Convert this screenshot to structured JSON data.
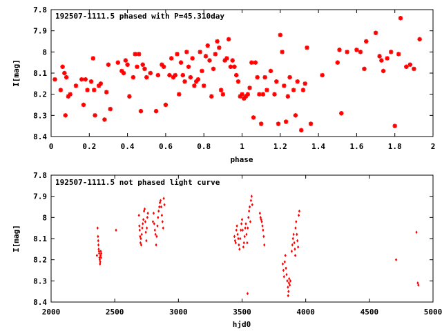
{
  "chart_data": [
    {
      "type": "scatter",
      "title": "192507-1111.5 phased with P=45.310day",
      "xlabel": "phase",
      "ylabel": "I[mag]",
      "xlim": [
        0,
        2
      ],
      "ylim": [
        8.4,
        7.8
      ],
      "y_inverted": true,
      "grid": false,
      "marker_color": "#ff0000",
      "marker": "star",
      "x_ticks": [
        "0",
        "0.2",
        "0.4",
        "0.6",
        "0.8",
        "1",
        "1.2",
        "1.4",
        "1.6",
        "1.8",
        "2"
      ],
      "y_ticks": [
        "7.8",
        "7.9",
        "8",
        "8.1",
        "8.2",
        "8.3",
        "8.4"
      ],
      "series": [
        {
          "points": [
            [
              0.02,
              8.13
            ],
            [
              0.05,
              8.18
            ],
            [
              0.06,
              8.07
            ],
            [
              0.07,
              8.1
            ],
            [
              0.075,
              8.3
            ],
            [
              0.08,
              8.12
            ],
            [
              0.09,
              8.21
            ],
            [
              0.1,
              8.2
            ],
            [
              0.13,
              8.16
            ],
            [
              0.16,
              8.13
            ],
            [
              0.17,
              8.25
            ],
            [
              0.18,
              8.13
            ],
            [
              0.19,
              8.18
            ],
            [
              0.21,
              8.14
            ],
            [
              0.22,
              8.03
            ],
            [
              0.225,
              8.18
            ],
            [
              0.23,
              8.3
            ],
            [
              0.25,
              8.16
            ],
            [
              0.26,
              8.15
            ],
            [
              0.28,
              8.32
            ],
            [
              0.29,
              8.19
            ],
            [
              0.3,
              8.06
            ],
            [
              0.31,
              8.27
            ],
            [
              0.35,
              8.05
            ],
            [
              0.37,
              8.09
            ],
            [
              0.38,
              8.1
            ],
            [
              0.39,
              8.04
            ],
            [
              0.4,
              8.06
            ],
            [
              0.41,
              8.21
            ],
            [
              0.43,
              8.12
            ],
            [
              0.44,
              8.01
            ],
            [
              0.45,
              8.07
            ],
            [
              0.46,
              8.01
            ],
            [
              0.47,
              8.28
            ],
            [
              0.48,
              8.06
            ],
            [
              0.49,
              8.08
            ],
            [
              0.5,
              8.12
            ],
            [
              0.52,
              8.1
            ],
            [
              0.55,
              8.28
            ],
            [
              0.56,
              8.11
            ],
            [
              0.58,
              8.06
            ],
            [
              0.59,
              8.07
            ],
            [
              0.6,
              8.25
            ],
            [
              0.62,
              8.11
            ],
            [
              0.63,
              8.03
            ],
            [
              0.64,
              8.12
            ],
            [
              0.65,
              8.11
            ],
            [
              0.66,
              8.01
            ],
            [
              0.67,
              8.2
            ],
            [
              0.68,
              8.05
            ],
            [
              0.69,
              8.11
            ],
            [
              0.7,
              8.14
            ],
            [
              0.71,
              8.0
            ],
            [
              0.72,
              8.07
            ],
            [
              0.73,
              8.12
            ],
            [
              0.74,
              8.03
            ],
            [
              0.75,
              8.16
            ],
            [
              0.76,
              8.14
            ],
            [
              0.77,
              8.13
            ],
            [
              0.78,
              8.0
            ],
            [
              0.79,
              8.09
            ],
            [
              0.8,
              8.16
            ],
            [
              0.81,
              8.02
            ],
            [
              0.82,
              7.97
            ],
            [
              0.83,
              8.04
            ],
            [
              0.84,
              8.21
            ],
            [
              0.85,
              8.08
            ],
            [
              0.86,
              8.01
            ],
            [
              0.87,
              7.95
            ],
            [
              0.88,
              7.98
            ],
            [
              0.89,
              8.18
            ],
            [
              0.9,
              8.2
            ],
            [
              0.91,
              8.04
            ],
            [
              0.92,
              8.03
            ],
            [
              0.93,
              7.94
            ],
            [
              0.94,
              8.07
            ],
            [
              0.95,
              8.04
            ],
            [
              0.96,
              8.07
            ],
            [
              0.97,
              8.11
            ],
            [
              0.98,
              8.14
            ],
            [
              0.99,
              8.21
            ],
            [
              1.0,
              8.2
            ],
            [
              1.01,
              8.22
            ],
            [
              1.02,
              8.21
            ],
            [
              1.03,
              8.2
            ],
            [
              1.04,
              8.17
            ],
            [
              1.05,
              8.05
            ],
            [
              1.06,
              8.31
            ],
            [
              1.07,
              8.05
            ],
            [
              1.08,
              8.12
            ],
            [
              1.09,
              8.2
            ],
            [
              1.1,
              8.34
            ],
            [
              1.11,
              8.2
            ],
            [
              1.12,
              8.12
            ],
            [
              1.13,
              8.18
            ],
            [
              1.15,
              8.09
            ],
            [
              1.17,
              8.2
            ],
            [
              1.18,
              8.14
            ],
            [
              1.19,
              8.34
            ],
            [
              1.2,
              7.92
            ],
            [
              1.21,
              8.0
            ],
            [
              1.22,
              8.16
            ],
            [
              1.23,
              8.33
            ],
            [
              1.24,
              8.21
            ],
            [
              1.25,
              8.12
            ],
            [
              1.27,
              8.18
            ],
            [
              1.28,
              8.3
            ],
            [
              1.29,
              8.14
            ],
            [
              1.31,
              8.37
            ],
            [
              1.32,
              8.18
            ],
            [
              1.33,
              8.15
            ],
            [
              1.34,
              7.98
            ],
            [
              1.36,
              8.34
            ],
            [
              1.42,
              8.11
            ],
            [
              1.5,
              8.05
            ],
            [
              1.51,
              7.99
            ],
            [
              1.52,
              8.29
            ],
            [
              1.55,
              8.0
            ],
            [
              1.6,
              7.99
            ],
            [
              1.62,
              8.0
            ],
            [
              1.64,
              8.08
            ],
            [
              1.65,
              7.95
            ],
            [
              1.7,
              7.91
            ],
            [
              1.72,
              8.02
            ],
            [
              1.73,
              8.04
            ],
            [
              1.74,
              8.09
            ],
            [
              1.76,
              8.03
            ],
            [
              1.78,
              8.0
            ],
            [
              1.8,
              8.35
            ],
            [
              1.82,
              8.01
            ],
            [
              1.83,
              7.84
            ],
            [
              1.86,
              8.07
            ],
            [
              1.88,
              8.06
            ],
            [
              1.9,
              8.08
            ],
            [
              1.93,
              7.94
            ]
          ]
        }
      ]
    },
    {
      "type": "scatter",
      "title": "192507-1111.5 not phased light curve",
      "xlabel": "hjd0",
      "ylabel": "I[mag]",
      "xlim": [
        2000,
        5000
      ],
      "ylim": [
        8.4,
        7.8
      ],
      "y_inverted": true,
      "grid": false,
      "marker_color": "#ff0000",
      "marker": "diamond",
      "x_ticks": [
        "2000",
        "2500",
        "3000",
        "3500",
        "4000",
        "4500",
        "5000"
      ],
      "y_ticks": [
        "7.8",
        "7.9",
        "8",
        "8.1",
        "8.2",
        "8.3",
        "8.4"
      ],
      "series": [
        {
          "points": [
            [
              2360,
              8.18
            ],
            [
              2365,
              8.05
            ],
            [
              2368,
              8.09
            ],
            [
              2370,
              8.11
            ],
            [
              2372,
              8.13
            ],
            [
              2374,
              8.15
            ],
            [
              2376,
              8.16
            ],
            [
              2378,
              8.17
            ],
            [
              2380,
              8.19
            ],
            [
              2382,
              8.2
            ],
            [
              2384,
              8.22
            ],
            [
              2386,
              8.21
            ],
            [
              2388,
              8.18
            ],
            [
              2390,
              8.16
            ],
            [
              2392,
              8.19
            ],
            [
              2394,
              8.17
            ],
            [
              2510,
              8.06
            ],
            [
              2690,
              7.99
            ],
            [
              2693,
              8.04
            ],
            [
              2696,
              8.06
            ],
            [
              2699,
              8.09
            ],
            [
              2702,
              8.12
            ],
            [
              2705,
              8.1
            ],
            [
              2708,
              8.13
            ],
            [
              2712,
              8.08
            ],
            [
              2716,
              8.05
            ],
            [
              2720,
              8.03
            ],
            [
              2725,
              8.01
            ],
            [
              2730,
              7.97
            ],
            [
              2735,
              7.96
            ],
            [
              2740,
              8.02
            ],
            [
              2744,
              8.07
            ],
            [
              2748,
              8.11
            ],
            [
              2752,
              8.05
            ],
            [
              2756,
              8.0
            ],
            [
              2760,
              7.98
            ],
            [
              2800,
              8.02
            ],
            [
              2805,
              7.98
            ],
            [
              2810,
              8.03
            ],
            [
              2815,
              8.06
            ],
            [
              2820,
              8.08
            ],
            [
              2825,
              8.13
            ],
            [
              2830,
              8.09
            ],
            [
              2835,
              8.04
            ],
            [
              2840,
              8.0
            ],
            [
              2845,
              7.97
            ],
            [
              2850,
              7.95
            ],
            [
              2855,
              7.93
            ],
            [
              2860,
              7.92
            ],
            [
              2865,
              7.95
            ],
            [
              2870,
              7.99
            ],
            [
              2875,
              8.02
            ],
            [
              2880,
              8.05
            ],
            [
              2885,
              7.91
            ],
            [
              2890,
              7.94
            ],
            [
              3440,
              8.09
            ],
            [
              3445,
              8.11
            ],
            [
              3450,
              8.12
            ],
            [
              3455,
              8.06
            ],
            [
              3460,
              8.04
            ],
            [
              3465,
              8.08
            ],
            [
              3470,
              8.1
            ],
            [
              3475,
              8.13
            ],
            [
              3480,
              8.15
            ],
            [
              3485,
              8.1
            ],
            [
              3490,
              8.06
            ],
            [
              3495,
              8.03
            ],
            [
              3500,
              8.01
            ],
            [
              3505,
              8.06
            ],
            [
              3510,
              8.14
            ],
            [
              3515,
              8.12
            ],
            [
              3520,
              8.09
            ],
            [
              3525,
              8.05
            ],
            [
              3530,
              8.03
            ],
            [
              3535,
              8.08
            ],
            [
              3540,
              8.12
            ],
            [
              3543,
              8.36
            ],
            [
              3545,
              8.05
            ],
            [
              3550,
              8.0
            ],
            [
              3555,
              7.97
            ],
            [
              3560,
              7.95
            ],
            [
              3565,
              8.02
            ],
            [
              3570,
              7.92
            ],
            [
              3575,
              7.9
            ],
            [
              3580,
              7.94
            ],
            [
              3640,
              7.98
            ],
            [
              3645,
              8.0
            ],
            [
              3650,
              8.01
            ],
            [
              3655,
              8.02
            ],
            [
              3660,
              8.04
            ],
            [
              3665,
              8.06
            ],
            [
              3670,
              8.09
            ],
            [
              3675,
              8.13
            ],
            [
              3820,
              8.22
            ],
            [
              3825,
              8.25
            ],
            [
              3830,
              8.28
            ],
            [
              3835,
              8.21
            ],
            [
              3840,
              8.18
            ],
            [
              3845,
              8.24
            ],
            [
              3850,
              8.27
            ],
            [
              3855,
              8.3
            ],
            [
              3860,
              8.33
            ],
            [
              3862,
              8.37
            ],
            [
              3865,
              8.35
            ],
            [
              3868,
              8.31
            ],
            [
              3870,
              8.29
            ],
            [
              3875,
              8.32
            ],
            [
              3880,
              8.3
            ],
            [
              3890,
              8.16
            ],
            [
              3895,
              8.13
            ],
            [
              3900,
              8.1
            ],
            [
              3905,
              8.08
            ],
            [
              3910,
              8.12
            ],
            [
              3915,
              8.15
            ],
            [
              3918,
              8.18
            ],
            [
              3920,
              8.05
            ],
            [
              3925,
              8.02
            ],
            [
              3930,
              8.08
            ],
            [
              3935,
              8.11
            ],
            [
              3940,
              8.14
            ],
            [
              3945,
              7.99
            ],
            [
              3950,
              7.97
            ],
            [
              4710,
              8.2
            ],
            [
              4870,
              8.07
            ],
            [
              4880,
              8.31
            ],
            [
              4885,
              8.32
            ]
          ]
        }
      ]
    }
  ]
}
